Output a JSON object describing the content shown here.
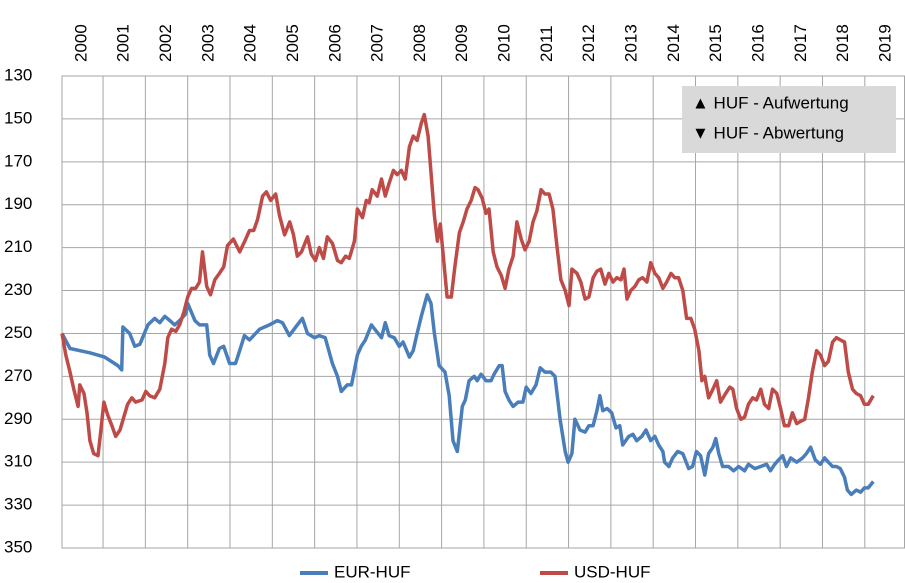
{
  "chart_data": {
    "type": "line",
    "y_inverted": true,
    "grid": true,
    "legend": "bottom",
    "annotations": [
      "▲ HUF - Aufwertung",
      "▼ HUF - Abwertung"
    ],
    "xlim": [
      1999.53,
      2019.45
    ],
    "xticks": [
      2000,
      2001,
      2002,
      2003,
      2004,
      2005,
      2006,
      2007,
      2008,
      2009,
      2010,
      2011,
      2012,
      2013,
      2014,
      2015,
      2016,
      2017,
      2018,
      2019
    ],
    "ylim": [
      130,
      350
    ],
    "yticks": [
      130,
      150,
      170,
      190,
      210,
      230,
      250,
      270,
      290,
      310,
      330,
      350
    ],
    "series": [
      {
        "name": "EUR-HUF",
        "color": "#4a7ebb",
        "x": [
          1999.53,
          1999.72,
          2000.19,
          2000.54,
          2000.85,
          2000.94,
          2000.97,
          2001.13,
          2001.25,
          2001.37,
          2001.56,
          2001.72,
          2001.84,
          2001.96,
          2002.08,
          2002.19,
          2002.31,
          2002.45,
          2002.5,
          2002.67,
          2002.78,
          2002.95,
          2003.02,
          2003.11,
          2003.25,
          2003.35,
          2003.49,
          2003.63,
          2003.73,
          2003.84,
          2003.96,
          2004.2,
          2004.43,
          2004.62,
          2004.74,
          2004.9,
          2005.09,
          2005.21,
          2005.33,
          2005.5,
          2005.61,
          2005.75,
          2005.92,
          2006.04,
          2006.13,
          2006.27,
          2006.37,
          2006.51,
          2006.6,
          2006.7,
          2006.84,
          2006.96,
          2007.08,
          2007.17,
          2007.26,
          2007.38,
          2007.5,
          2007.59,
          2007.74,
          2007.83,
          2007.92,
          2008.02,
          2008.16,
          2008.25,
          2008.33,
          2008.44,
          2008.58,
          2008.68,
          2008.77,
          2008.87,
          2008.99,
          2009.06,
          2009.15,
          2009.27,
          2009.34,
          2009.43,
          2009.55,
          2009.67,
          2009.74,
          2009.86,
          2009.93,
          2010.0,
          2010.09,
          2010.19,
          2010.31,
          2010.42,
          2010.5,
          2010.61,
          2010.73,
          2010.83,
          2010.94,
          2011.08,
          2011.18,
          2011.3,
          2011.42,
          2011.49,
          2011.58,
          2011.65,
          2011.77,
          2011.89,
          2011.98,
          2012.08,
          2012.17,
          2012.24,
          2012.31,
          2012.41,
          2012.52,
          2012.62,
          2012.71,
          2012.78,
          2012.92,
          2013.02,
          2013.11,
          2013.23,
          2013.33,
          2013.44,
          2013.54,
          2013.63,
          2013.73,
          2013.77,
          2013.87,
          2013.96,
          2014.08,
          2014.2,
          2014.34,
          2014.43,
          2014.52,
          2014.62,
          2014.72,
          2014.81,
          2014.91,
          2014.98,
          2015.05,
          2015.14,
          2015.28,
          2015.4,
          2015.52,
          2015.66,
          2015.75,
          2015.9,
          2016.04,
          2016.18,
          2016.27,
          2016.37,
          2016.46,
          2016.56,
          2016.65,
          2016.75,
          2016.89,
          2017.03,
          2017.12,
          2017.22,
          2017.33,
          2017.45,
          2017.55,
          2017.64,
          2017.74,
          2017.83,
          2017.92,
          2018.02,
          2018.09,
          2018.18,
          2018.3,
          2018.4,
          2018.49,
          2018.58,
          2018.7
        ],
        "values": [
          250,
          257,
          259,
          261,
          265,
          267,
          247,
          250,
          256,
          255,
          246,
          243,
          245,
          242,
          244,
          246,
          244,
          241,
          236,
          244,
          246,
          246,
          260,
          264,
          257,
          256,
          264,
          264,
          258,
          251,
          253,
          248,
          246,
          244,
          245,
          251,
          246,
          243,
          250,
          252,
          251,
          252,
          264,
          270,
          277,
          274,
          274,
          260,
          256,
          253,
          246,
          249,
          252,
          245,
          251,
          252,
          256,
          254,
          261,
          258,
          250,
          242,
          232,
          236,
          250,
          265,
          268,
          279,
          300,
          305,
          284,
          281,
          272,
          270,
          272,
          269,
          272,
          272,
          269,
          265,
          265,
          277,
          281,
          284,
          282,
          282,
          275,
          278,
          274,
          266,
          268,
          268,
          270,
          290,
          305,
          310,
          306,
          290,
          295,
          296,
          293,
          293,
          286,
          279,
          286,
          285,
          287,
          294,
          293,
          302,
          298,
          297,
          300,
          298,
          295,
          300,
          298,
          302,
          305,
          310,
          312,
          308,
          305,
          306,
          313,
          312,
          305,
          307,
          316,
          306,
          303,
          299,
          306,
          312,
          312,
          314,
          312,
          314,
          311,
          313,
          312,
          311,
          314,
          311,
          309,
          307,
          312,
          308,
          310,
          308,
          306,
          303,
          309,
          311,
          308,
          310,
          312,
          312,
          313,
          317,
          323,
          325,
          323,
          324,
          322,
          322,
          319
        ]
      },
      {
        "name": "USD-HUF",
        "color": "#be4b48",
        "x": [
          1999.53,
          1999.62,
          1999.72,
          1999.81,
          1999.91,
          1999.95,
          2000.05,
          2000.12,
          2000.19,
          2000.28,
          2000.38,
          2000.45,
          2000.52,
          2000.61,
          2000.71,
          2000.8,
          2000.9,
          2000.99,
          2001.08,
          2001.18,
          2001.27,
          2001.42,
          2001.51,
          2001.6,
          2001.72,
          2001.84,
          2001.96,
          2002.03,
          2002.12,
          2002.22,
          2002.31,
          2002.41,
          2002.5,
          2002.59,
          2002.69,
          2002.78,
          2002.85,
          2002.95,
          2003.04,
          2003.14,
          2003.25,
          2003.35,
          2003.44,
          2003.58,
          2003.73,
          2003.87,
          2003.96,
          2004.06,
          2004.15,
          2004.27,
          2004.36,
          2004.46,
          2004.58,
          2004.67,
          2004.79,
          2004.91,
          2005.0,
          2005.09,
          2005.19,
          2005.33,
          2005.42,
          2005.52,
          2005.61,
          2005.71,
          2005.8,
          2005.92,
          2006.04,
          2006.13,
          2006.23,
          2006.32,
          2006.44,
          2006.51,
          2006.63,
          2006.72,
          2006.79,
          2006.86,
          2006.98,
          2007.08,
          2007.17,
          2007.26,
          2007.36,
          2007.45,
          2007.55,
          2007.64,
          2007.74,
          2007.83,
          2007.92,
          2008.02,
          2008.09,
          2008.18,
          2008.25,
          2008.33,
          2008.4,
          2008.47,
          2008.56,
          2008.63,
          2008.73,
          2008.82,
          2008.92,
          2009.01,
          2009.1,
          2009.2,
          2009.29,
          2009.36,
          2009.46,
          2009.55,
          2009.62,
          2009.72,
          2009.81,
          2009.91,
          2010.0,
          2010.09,
          2010.19,
          2010.28,
          2010.38,
          2010.47,
          2010.57,
          2010.66,
          2010.75,
          2010.85,
          2010.94,
          2011.04,
          2011.13,
          2011.23,
          2011.32,
          2011.42,
          2011.51,
          2011.58,
          2011.7,
          2011.79,
          2011.89,
          2011.98,
          2012.08,
          2012.17,
          2012.26,
          2012.36,
          2012.45,
          2012.55,
          2012.64,
          2012.74,
          2012.81,
          2012.88,
          2012.97,
          2013.07,
          2013.16,
          2013.25,
          2013.35,
          2013.44,
          2013.54,
          2013.63,
          2013.73,
          2013.82,
          2013.92,
          2014.01,
          2014.1,
          2014.2,
          2014.29,
          2014.39,
          2014.48,
          2014.58,
          2014.65,
          2014.72,
          2014.81,
          2014.91,
          2015.0,
          2015.09,
          2015.21,
          2015.31,
          2015.38,
          2015.47,
          2015.57,
          2015.66,
          2015.75,
          2015.85,
          2015.94,
          2016.04,
          2016.13,
          2016.23,
          2016.32,
          2016.42,
          2016.51,
          2016.6,
          2016.7,
          2016.79,
          2016.89,
          2016.98,
          2017.08,
          2017.17,
          2017.26,
          2017.36,
          2017.45,
          2017.55,
          2017.64,
          2017.74,
          2017.83,
          2017.92,
          2018.02,
          2018.11,
          2018.21,
          2018.3,
          2018.4,
          2018.49,
          2018.58,
          2018.7
        ],
        "values": [
          250,
          260,
          268,
          276,
          284,
          274,
          278,
          287,
          300,
          306,
          307,
          295,
          282,
          288,
          293,
          298,
          295,
          289,
          283,
          280,
          282,
          281,
          277,
          279,
          280,
          276,
          264,
          252,
          248,
          249,
          246,
          240,
          233,
          229,
          229,
          226,
          212,
          228,
          232,
          225,
          222,
          219,
          209,
          206,
          212,
          206,
          202,
          202,
          197,
          186,
          184,
          188,
          185,
          195,
          204,
          198,
          204,
          214,
          212,
          205,
          213,
          216,
          210,
          215,
          205,
          208,
          216,
          217,
          214,
          215,
          207,
          192,
          196,
          188,
          189,
          183,
          186,
          178,
          186,
          180,
          174,
          176,
          174,
          178,
          163,
          158,
          160,
          152,
          148,
          158,
          175,
          195,
          207,
          199,
          218,
          233,
          233,
          218,
          203,
          198,
          192,
          188,
          182,
          183,
          187,
          194,
          192,
          212,
          219,
          223,
          229,
          220,
          214,
          198,
          206,
          211,
          207,
          198,
          193,
          183,
          185,
          185,
          192,
          210,
          225,
          230,
          237,
          220,
          222,
          226,
          234,
          233,
          224,
          221,
          220,
          227,
          222,
          226,
          224,
          225,
          220,
          234,
          230,
          228,
          225,
          224,
          226,
          217,
          222,
          224,
          229,
          226,
          222,
          224,
          224,
          230,
          243,
          243,
          248,
          258,
          272,
          270,
          280,
          276,
          272,
          282,
          278,
          275,
          276,
          285,
          290,
          289,
          283,
          280,
          281,
          276,
          283,
          285,
          276,
          278,
          285,
          293,
          293,
          287,
          292,
          291,
          290,
          280,
          268,
          258,
          260,
          265,
          263,
          254,
          252,
          253,
          254,
          268,
          276,
          278,
          279,
          283,
          283,
          279
        ]
      }
    ]
  }
}
